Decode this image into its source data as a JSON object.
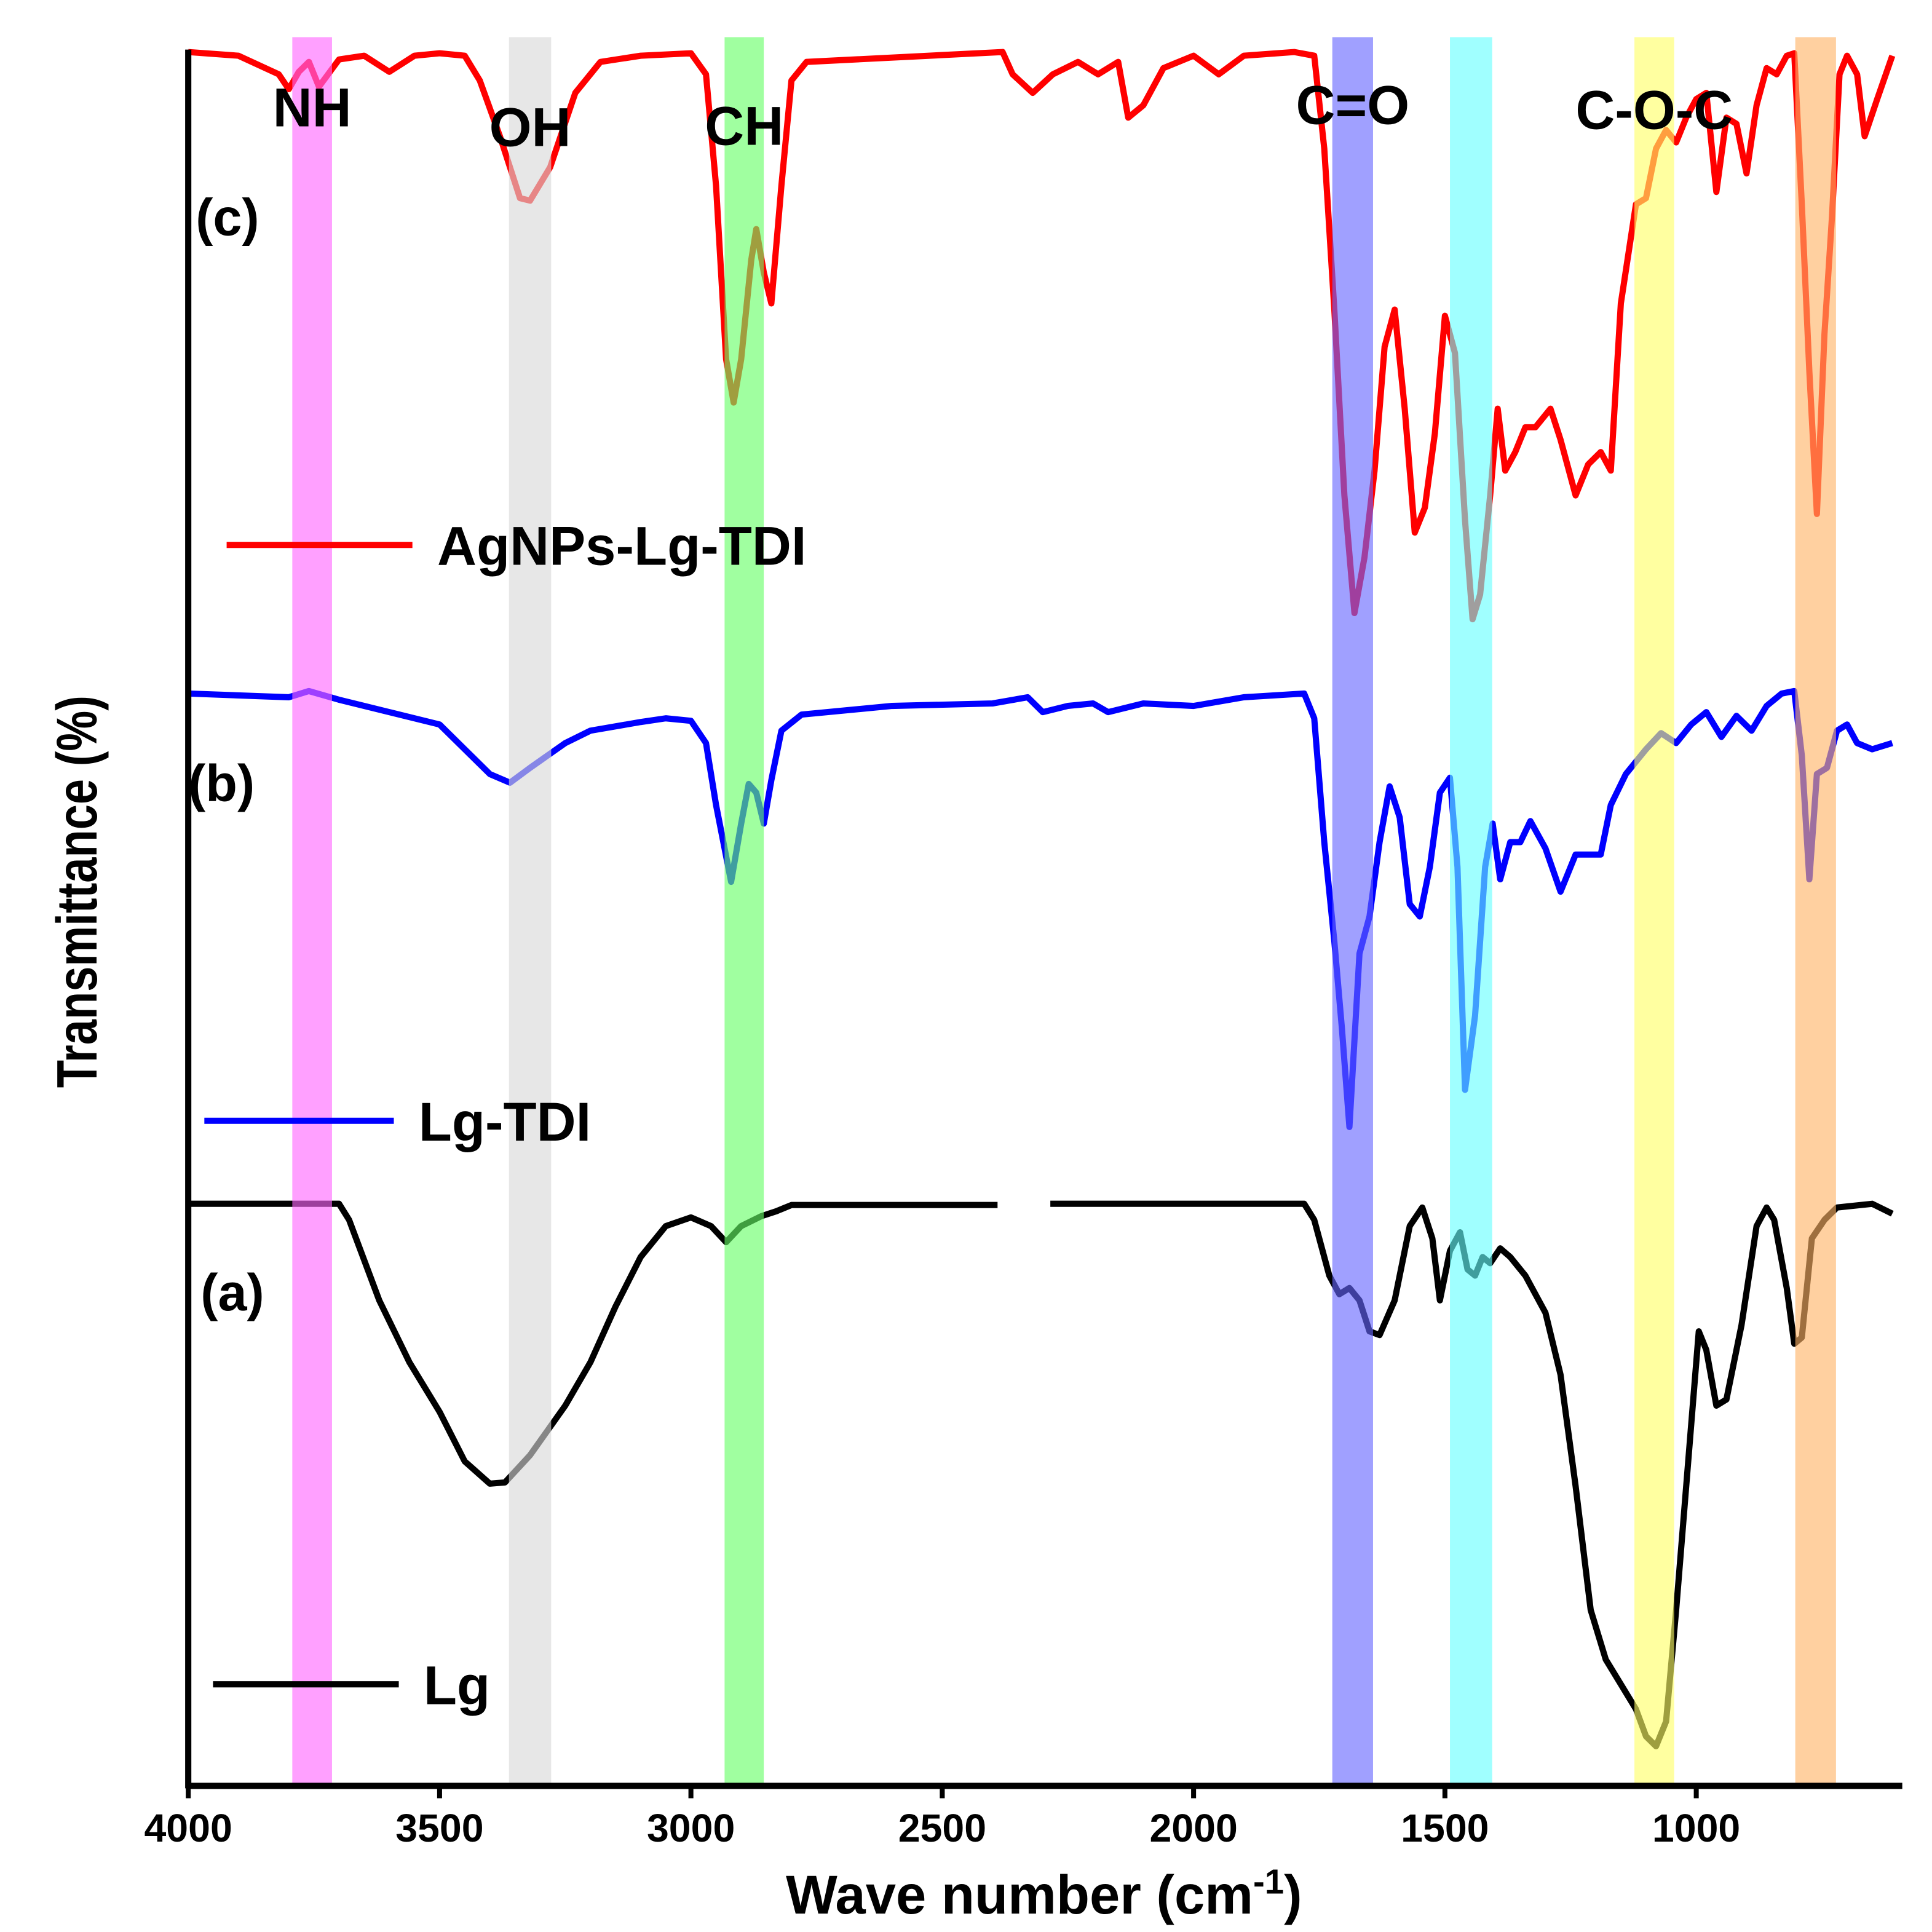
{
  "chart_data": {
    "type": "line",
    "xlabel": {
      "text": "Wave number (cm",
      "superscript": "-1",
      "suffix": ")"
    },
    "ylabel": "Transmittance (%)",
    "xlim": [
      4000,
      600
    ],
    "ylim": [
      0,
      140
    ],
    "xticks": [
      4000,
      3500,
      3000,
      2500,
      2000,
      1500,
      1000
    ],
    "grid": false,
    "bands": [
      {
        "label": "NH",
        "xlim": [
          3793,
          3714
        ],
        "color": "#ff66ff"
      },
      {
        "label": "OH",
        "xlim": [
          3362,
          3278
        ],
        "color": "#d9d9d9"
      },
      {
        "label": "CH",
        "xlim": [
          2933,
          2855
        ],
        "color": "#66ff66"
      },
      {
        "label": "C=O",
        "xlim": [
          1724,
          1643
        ],
        "color": "#6666ff"
      },
      {
        "label": "",
        "xlim": [
          1490,
          1406
        ],
        "color": "#66ffff"
      },
      {
        "label": "C-O-C",
        "xlim": [
          1123,
          1044
        ],
        "color": "#ffff66"
      },
      {
        "label": "",
        "xlim": [
          803,
          722
        ],
        "color": "#ffb366"
      }
    ],
    "annotations": [
      "(c)",
      "(b)",
      "(a)"
    ],
    "series": [
      {
        "name": "AgNPs-Lg-TDI",
        "color": "#ff0000",
        "x": [
          4000,
          3900,
          3820,
          3800,
          3780,
          3760,
          3740,
          3700,
          3650,
          3600,
          3550,
          3500,
          3450,
          3420,
          3380,
          3340,
          3320,
          3280,
          3230,
          3180,
          3100,
          3000,
          2970,
          2950,
          2930,
          2915,
          2900,
          2880,
          2870,
          2855,
          2840,
          2820,
          2800,
          2770,
          2380,
          2360,
          2320,
          2280,
          2230,
          2190,
          2150,
          2130,
          2100,
          2060,
          2000,
          1950,
          1900,
          1800,
          1760,
          1740,
          1720,
          1700,
          1680,
          1660,
          1640,
          1620,
          1600,
          1580,
          1560,
          1540,
          1520,
          1500,
          1480,
          1460,
          1445,
          1430,
          1410,
          1395,
          1380,
          1360,
          1340,
          1320,
          1290,
          1270,
          1240,
          1215,
          1190,
          1170,
          1150,
          1120,
          1100,
          1080,
          1060,
          1040,
          1020,
          1000,
          980,
          960,
          940,
          920,
          900,
          880,
          860,
          840,
          820,
          805,
          790,
          775,
          760,
          745,
          730,
          715,
          700,
          680,
          665,
          640,
          610
        ],
        "values": [
          140.0,
          139.7,
          138.2,
          137.0,
          138.4,
          139.2,
          137.2,
          139.4,
          139.7,
          138.4,
          139.7,
          139.9,
          139.7,
          137.7,
          133.2,
          128.2,
          128.0,
          130.7,
          136.7,
          139.2,
          139.7,
          139.9,
          138.2,
          129.2,
          115.2,
          111.7,
          115.2,
          123.2,
          125.7,
          122.2,
          119.7,
          129.2,
          137.7,
          139.2,
          140.0,
          138.2,
          136.7,
          138.2,
          139.2,
          138.2,
          139.2,
          134.7,
          135.7,
          138.7,
          139.7,
          138.2,
          139.7,
          140.0,
          139.7,
          132.2,
          119.2,
          104.2,
          94.7,
          99.2,
          106.2,
          116.2,
          119.2,
          111.2,
          101.2,
          103.2,
          109.2,
          118.7,
          115.7,
          102.2,
          94.2,
          96.2,
          104.2,
          111.2,
          106.2,
          107.7,
          109.7,
          109.7,
          111.2,
          108.7,
          104.2,
          106.7,
          107.7,
          106.2,
          119.7,
          127.7,
          128.2,
          132.2,
          133.7,
          132.7,
          134.7,
          136.2,
          136.7,
          128.7,
          134.7,
          134.2,
          130.2,
          135.7,
          138.7,
          138.2,
          139.7,
          139.9,
          127.7,
          114.2,
          102.7,
          117.2,
          126.7,
          138.2,
          139.7,
          138.2,
          133.2,
          136.2,
          139.7
        ]
      },
      {
        "name": "Lg-TDI",
        "color": "#0000ff",
        "x": [
          4000,
          3800,
          3760,
          3700,
          3600,
          3500,
          3450,
          3400,
          3360,
          3320,
          3250,
          3200,
          3100,
          3050,
          3000,
          2970,
          2950,
          2920,
          2900,
          2885,
          2870,
          2855,
          2840,
          2820,
          2780,
          2600,
          2400,
          2330,
          2300,
          2250,
          2200,
          2170,
          2100,
          2000,
          1900,
          1780,
          1760,
          1740,
          1720,
          1705,
          1690,
          1670,
          1650,
          1630,
          1610,
          1590,
          1570,
          1550,
          1530,
          1510,
          1490,
          1475,
          1460,
          1440,
          1420,
          1405,
          1390,
          1370,
          1350,
          1330,
          1300,
          1270,
          1240,
          1220,
          1190,
          1170,
          1140,
          1100,
          1070,
          1040,
          1010,
          980,
          950,
          920,
          890,
          860,
          830,
          805,
          790,
          775,
          760,
          740,
          720,
          700,
          680,
          650,
          610
        ],
        "values": [
          88.2,
          87.9,
          88.4,
          87.7,
          86.7,
          85.7,
          83.7,
          81.7,
          81.0,
          82.2,
          84.2,
          85.2,
          85.9,
          86.2,
          86.0,
          84.2,
          79.2,
          73.0,
          77.7,
          80.9,
          80.2,
          77.7,
          81.2,
          85.2,
          86.5,
          87.2,
          87.4,
          87.9,
          86.7,
          87.2,
          87.4,
          86.7,
          87.4,
          87.2,
          87.9,
          88.2,
          86.2,
          76.2,
          68.2,
          61.2,
          53.2,
          67.2,
          70.2,
          76.2,
          80.7,
          78.2,
          71.2,
          70.2,
          74.2,
          80.2,
          81.4,
          74.2,
          56.2,
          62.2,
          74.2,
          77.7,
          73.2,
          76.2,
          76.2,
          77.9,
          75.7,
          72.2,
          75.2,
          75.2,
          75.2,
          79.2,
          81.7,
          83.7,
          85.0,
          84.2,
          85.7,
          86.7,
          84.7,
          86.4,
          85.2,
          87.2,
          88.2,
          88.4,
          83.2,
          73.2,
          81.7,
          82.2,
          85.2,
          85.7,
          84.2,
          83.7,
          84.2
        ]
      },
      {
        "name": "Lg",
        "color": "#000000",
        "x": [
          4000,
          3700,
          3680,
          3620,
          3560,
          3500,
          3450,
          3400,
          3370,
          3320,
          3250,
          3200,
          3150,
          3100,
          3050,
          3000,
          2960,
          2930,
          2900,
          2860,
          2830,
          2800,
          2390,
          2330,
          2285,
          1780,
          1760,
          1730,
          1710,
          1690,
          1670,
          1650,
          1630,
          1600,
          1570,
          1545,
          1525,
          1510,
          1490,
          1470,
          1455,
          1440,
          1425,
          1410,
          1390,
          1370,
          1340,
          1300,
          1270,
          1240,
          1210,
          1180,
          1150,
          1120,
          1100,
          1080,
          1060,
          1040,
          1010,
          995,
          980,
          960,
          940,
          910,
          880,
          860,
          845,
          820,
          805,
          790,
          770,
          745,
          720,
          650,
          610
        ],
        "values": [
          47.0,
          47.0,
          45.7,
          39.2,
          34.2,
          30.2,
          26.2,
          24.4,
          24.5,
          26.7,
          30.7,
          34.2,
          38.7,
          42.7,
          45.2,
          45.9,
          45.2,
          43.9,
          45.2,
          46.0,
          46.4,
          46.9,
          46.9,
          null,
          47.0,
          47.0,
          45.7,
          41.2,
          39.7,
          40.2,
          39.2,
          36.7,
          36.4,
          39.2,
          45.2,
          46.7,
          44.2,
          39.2,
          43.2,
          44.7,
          41.7,
          41.2,
          42.7,
          42.2,
          43.4,
          42.7,
          41.2,
          38.2,
          33.2,
          24.2,
          14.2,
          10.2,
          8.2,
          6.2,
          4.0,
          3.2,
          5.2,
          14.2,
          29.2,
          36.7,
          35.2,
          30.7,
          31.2,
          37.2,
          45.2,
          46.7,
          45.7,
          40.2,
          35.7,
          36.2,
          44.2,
          45.7,
          46.7,
          47.0,
          46.2
        ]
      }
    ]
  }
}
